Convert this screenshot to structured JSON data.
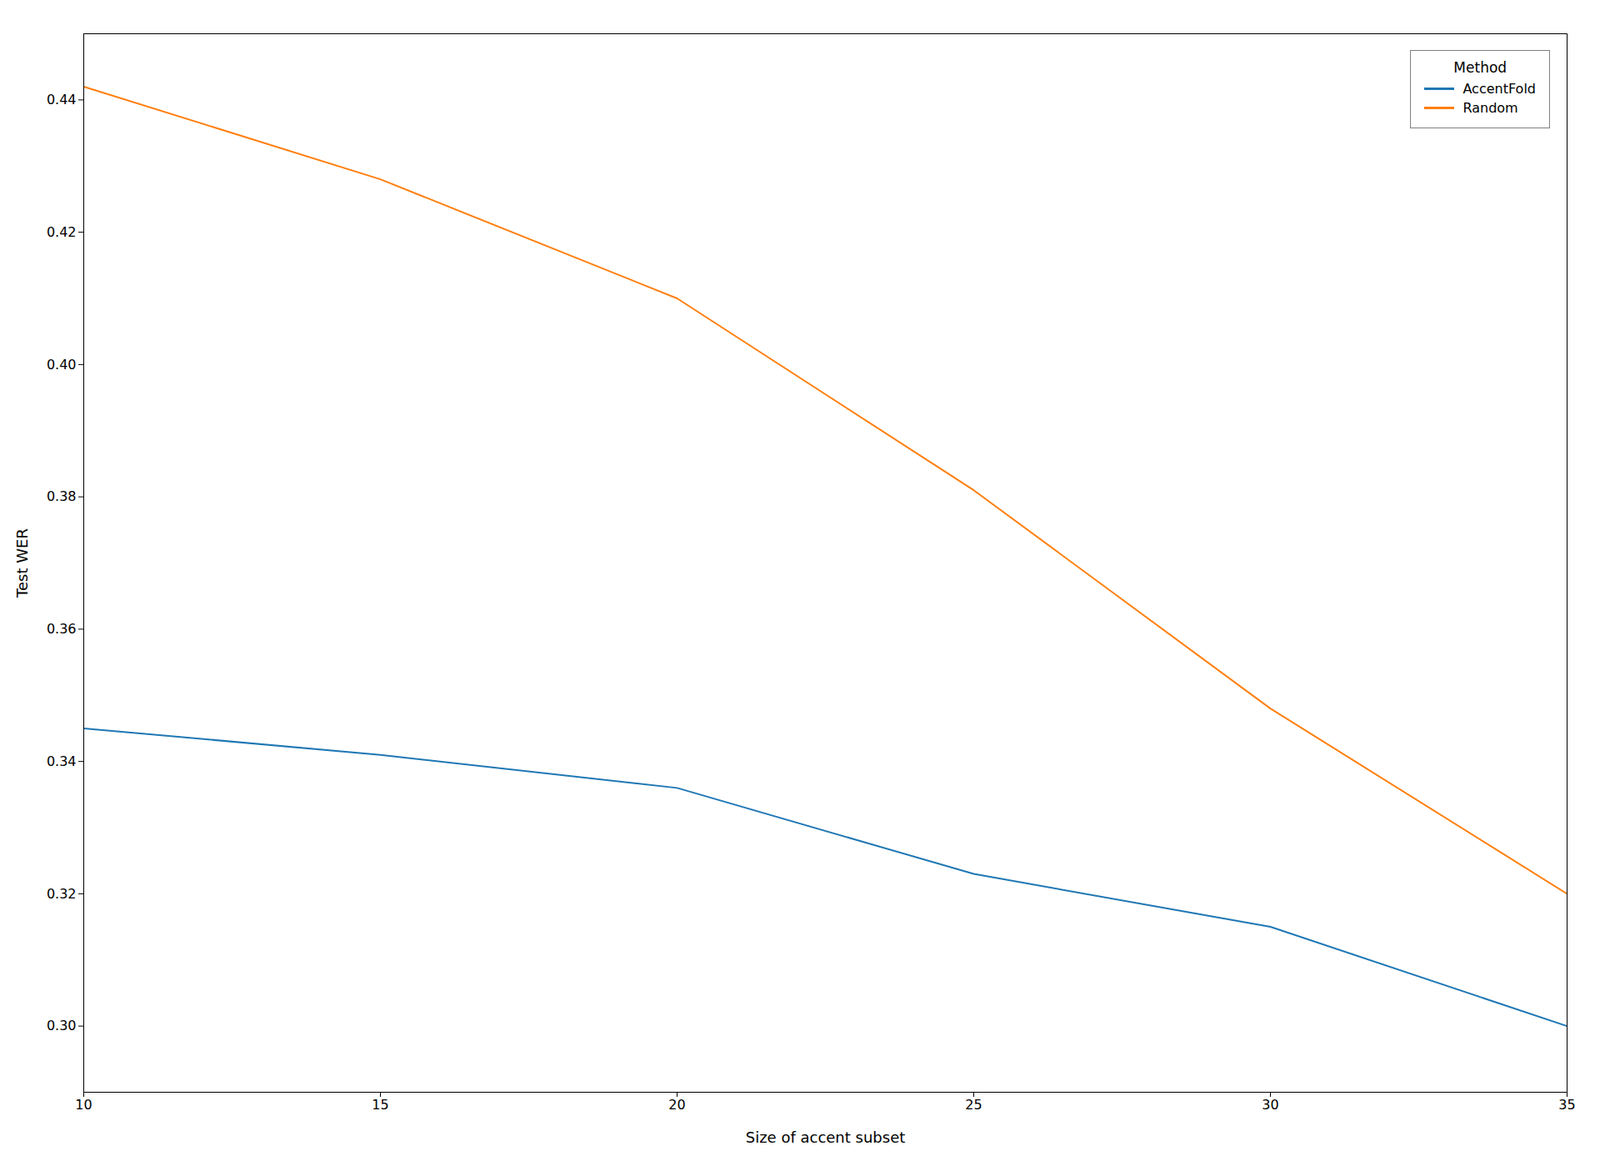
{
  "chart_data": {
    "type": "line",
    "x": [
      10,
      15,
      20,
      25,
      30,
      35
    ],
    "series": [
      {
        "name": "AccentFold",
        "color": "#1f77b4",
        "values": [
          0.345,
          0.341,
          0.336,
          0.323,
          0.315,
          0.3
        ]
      },
      {
        "name": "Random",
        "color": "#ff7f0e",
        "values": [
          0.442,
          0.428,
          0.41,
          0.381,
          0.348,
          0.32
        ]
      }
    ],
    "x_label": "Size of accent subset",
    "y_label": "Test WER",
    "legend_title": "Method",
    "legend": "upper right",
    "grid": false,
    "xlim": [
      10,
      35
    ],
    "ylim": [
      0.29,
      0.45
    ],
    "xticks": [
      10,
      15,
      20,
      25,
      30,
      35
    ],
    "yticks": [
      {
        "value": 0.3,
        "label": "0.30"
      },
      0.32,
      0.34,
      0.36,
      0.38,
      {
        "value": 0.4,
        "label": "0.40"
      },
      0.42,
      0.44
    ]
  }
}
